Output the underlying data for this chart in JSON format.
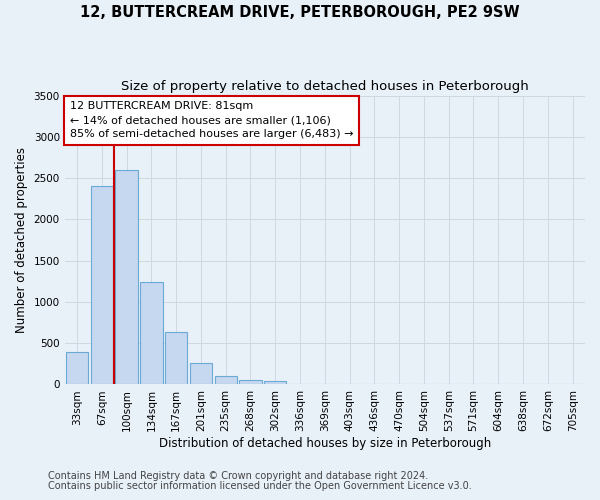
{
  "title": "12, BUTTERCREAM DRIVE, PETERBOROUGH, PE2 9SW",
  "subtitle": "Size of property relative to detached houses in Peterborough",
  "xlabel": "Distribution of detached houses by size in Peterborough",
  "ylabel": "Number of detached properties",
  "footnote1": "Contains HM Land Registry data © Crown copyright and database right 2024.",
  "footnote2": "Contains public sector information licensed under the Open Government Licence v3.0.",
  "categories": [
    "33sqm",
    "67sqm",
    "100sqm",
    "134sqm",
    "167sqm",
    "201sqm",
    "235sqm",
    "268sqm",
    "302sqm",
    "336sqm",
    "369sqm",
    "403sqm",
    "436sqm",
    "470sqm",
    "504sqm",
    "537sqm",
    "571sqm",
    "604sqm",
    "638sqm",
    "672sqm",
    "705sqm"
  ],
  "values": [
    390,
    2400,
    2600,
    1240,
    640,
    255,
    100,
    55,
    45,
    0,
    0,
    0,
    0,
    0,
    0,
    0,
    0,
    0,
    0,
    0,
    0
  ],
  "bar_color": "#c5d8ef",
  "bar_edge_color": "#6aaad4",
  "property_line_color": "#cc0000",
  "property_line_x": 1.5,
  "annotation_text": "12 BUTTERCREAM DRIVE: 81sqm\n← 14% of detached houses are smaller (1,106)\n85% of semi-detached houses are larger (6,483) →",
  "annotation_box_color": "#ffffff",
  "annotation_box_edge": "#cc0000",
  "ylim": [
    0,
    3500
  ],
  "yticks": [
    0,
    500,
    1000,
    1500,
    2000,
    2500,
    3000,
    3500
  ],
  "background_color": "#e8f0f8",
  "plot_bg_color": "#e8f0f8",
  "grid_color": "#d0d8e4",
  "title_fontsize": 10.5,
  "subtitle_fontsize": 9.5,
  "axis_fontsize": 8.5,
  "tick_fontsize": 7.5,
  "footnote_fontsize": 7.0,
  "annotation_fontsize": 8.0
}
